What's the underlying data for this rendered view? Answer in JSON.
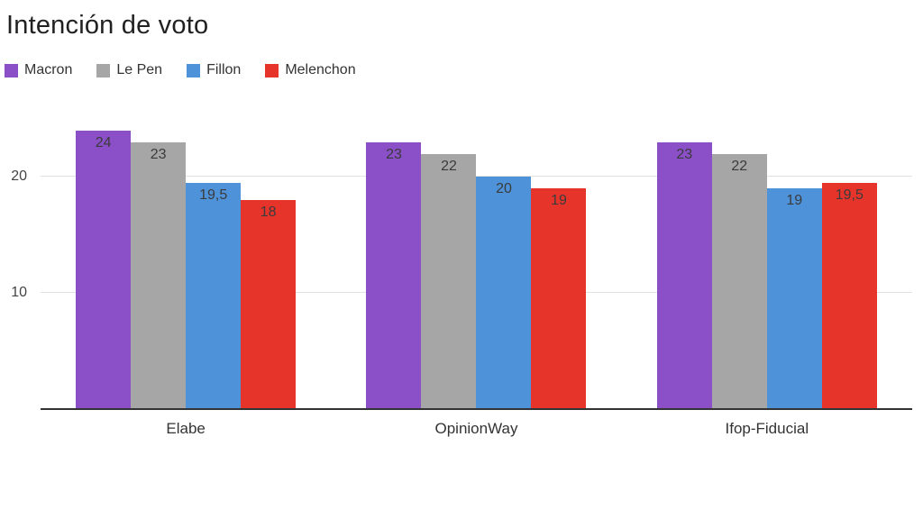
{
  "chart": {
    "title": "Intención de voto"
  },
  "chart_data": {
    "type": "bar",
    "title": "Intención de voto",
    "categories": [
      "Elabe",
      "OpinionWay",
      "Ifop-Fiducial"
    ],
    "series": [
      {
        "name": "Macron",
        "color": "#8b4fc7",
        "values": [
          24,
          23,
          23
        ],
        "labels": [
          "24",
          "23",
          "23"
        ]
      },
      {
        "name": "Le Pen",
        "color": "#a6a6a6",
        "values": [
          23,
          22,
          22
        ],
        "labels": [
          "23",
          "22",
          "22"
        ]
      },
      {
        "name": "Fillon",
        "color": "#4e92d9",
        "values": [
          19.5,
          20,
          19
        ],
        "labels": [
          "19,5",
          "20",
          "19"
        ]
      },
      {
        "name": "Melenchon",
        "color": "#e7342b",
        "values": [
          18,
          19,
          19.5
        ],
        "labels": [
          "18",
          "19",
          "19,5"
        ]
      }
    ],
    "yticks": [
      10,
      20
    ],
    "ylim": [
      0,
      26
    ],
    "xlabel": "",
    "ylabel": "",
    "grid": true,
    "legend_position": "top",
    "value_labels_inside": true,
    "decimal_separator": ","
  }
}
